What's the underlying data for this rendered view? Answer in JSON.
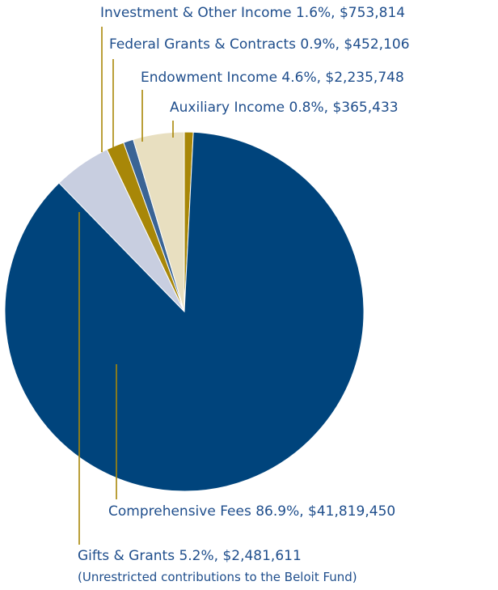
{
  "chart_data": {
    "type": "pie",
    "start_angle_deg": 0,
    "slices": [
      {
        "id": "auxiliary",
        "label": "Auxiliary Income  0.8%, $365,433",
        "percent": 0.8,
        "value": 365433,
        "color": "#a88708"
      },
      {
        "id": "comprehensive",
        "label": "Comprehensive Fees 86.9%, $41,819,450",
        "percent": 86.9,
        "value": 41819450,
        "color": "#00447c"
      },
      {
        "id": "gifts",
        "label": "Gifts & Grants 5.2%, $2,481,611",
        "note": "(Unrestricted contributions to the Beloit Fund)",
        "percent": 5.2,
        "value": 2481611,
        "color": "#c8cee0"
      },
      {
        "id": "investment",
        "label": "Investment & Other Income  1.6%, $753,814",
        "percent": 1.6,
        "value": 753814,
        "color": "#a88708"
      },
      {
        "id": "federal",
        "label": "Federal Grants & Contracts 0.9%, $452,106",
        "percent": 0.9,
        "value": 452106,
        "color": "#3a6495"
      },
      {
        "id": "endowment",
        "label": "Endowment Income 4.6%, $2,235,748",
        "percent": 4.6,
        "value": 2235748,
        "color": "#e8dfc0"
      }
    ],
    "leader_line_color": "#a88708"
  }
}
